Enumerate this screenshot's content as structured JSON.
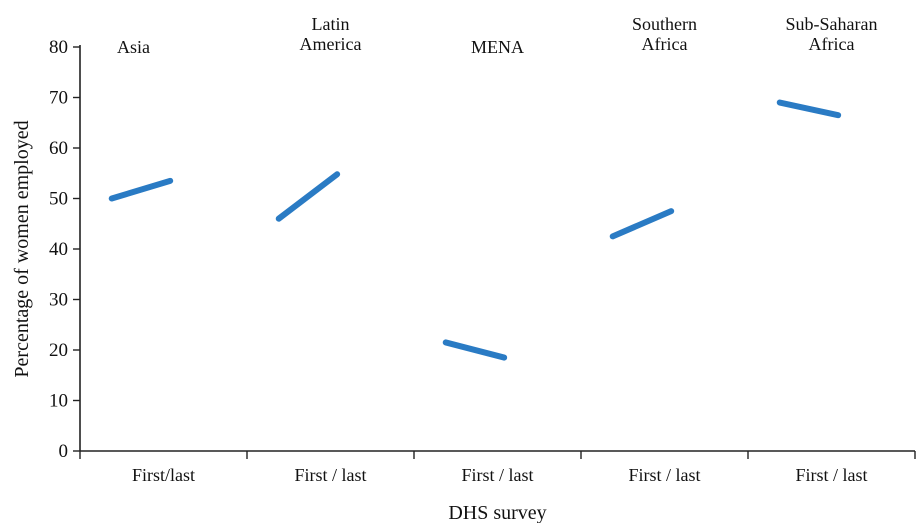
{
  "chart_data": {
    "type": "line",
    "xlabel": "DHS survey",
    "ylabel": "Percentage of women employed",
    "ylim": [
      0,
      80
    ],
    "yticks": [
      0,
      10,
      20,
      30,
      40,
      50,
      60,
      70,
      80
    ],
    "grid": false,
    "line_color": "#2a7bc4",
    "panels": [
      {
        "label_lines": [
          "Asia"
        ],
        "category": "First/last",
        "values": [
          50,
          53.5
        ]
      },
      {
        "label_lines": [
          "Latin",
          "America"
        ],
        "category": "First / last",
        "values": [
          46,
          54.8
        ]
      },
      {
        "label_lines": [
          "MENA"
        ],
        "category": "First / last",
        "values": [
          21.5,
          18.5
        ]
      },
      {
        "label_lines": [
          "Southern",
          "Africa"
        ],
        "category": "First / last",
        "values": [
          42.5,
          47.5
        ]
      },
      {
        "label_lines": [
          "Sub-Saharan",
          "Africa"
        ],
        "category": "First / last",
        "values": [
          69,
          66.5
        ]
      }
    ]
  }
}
